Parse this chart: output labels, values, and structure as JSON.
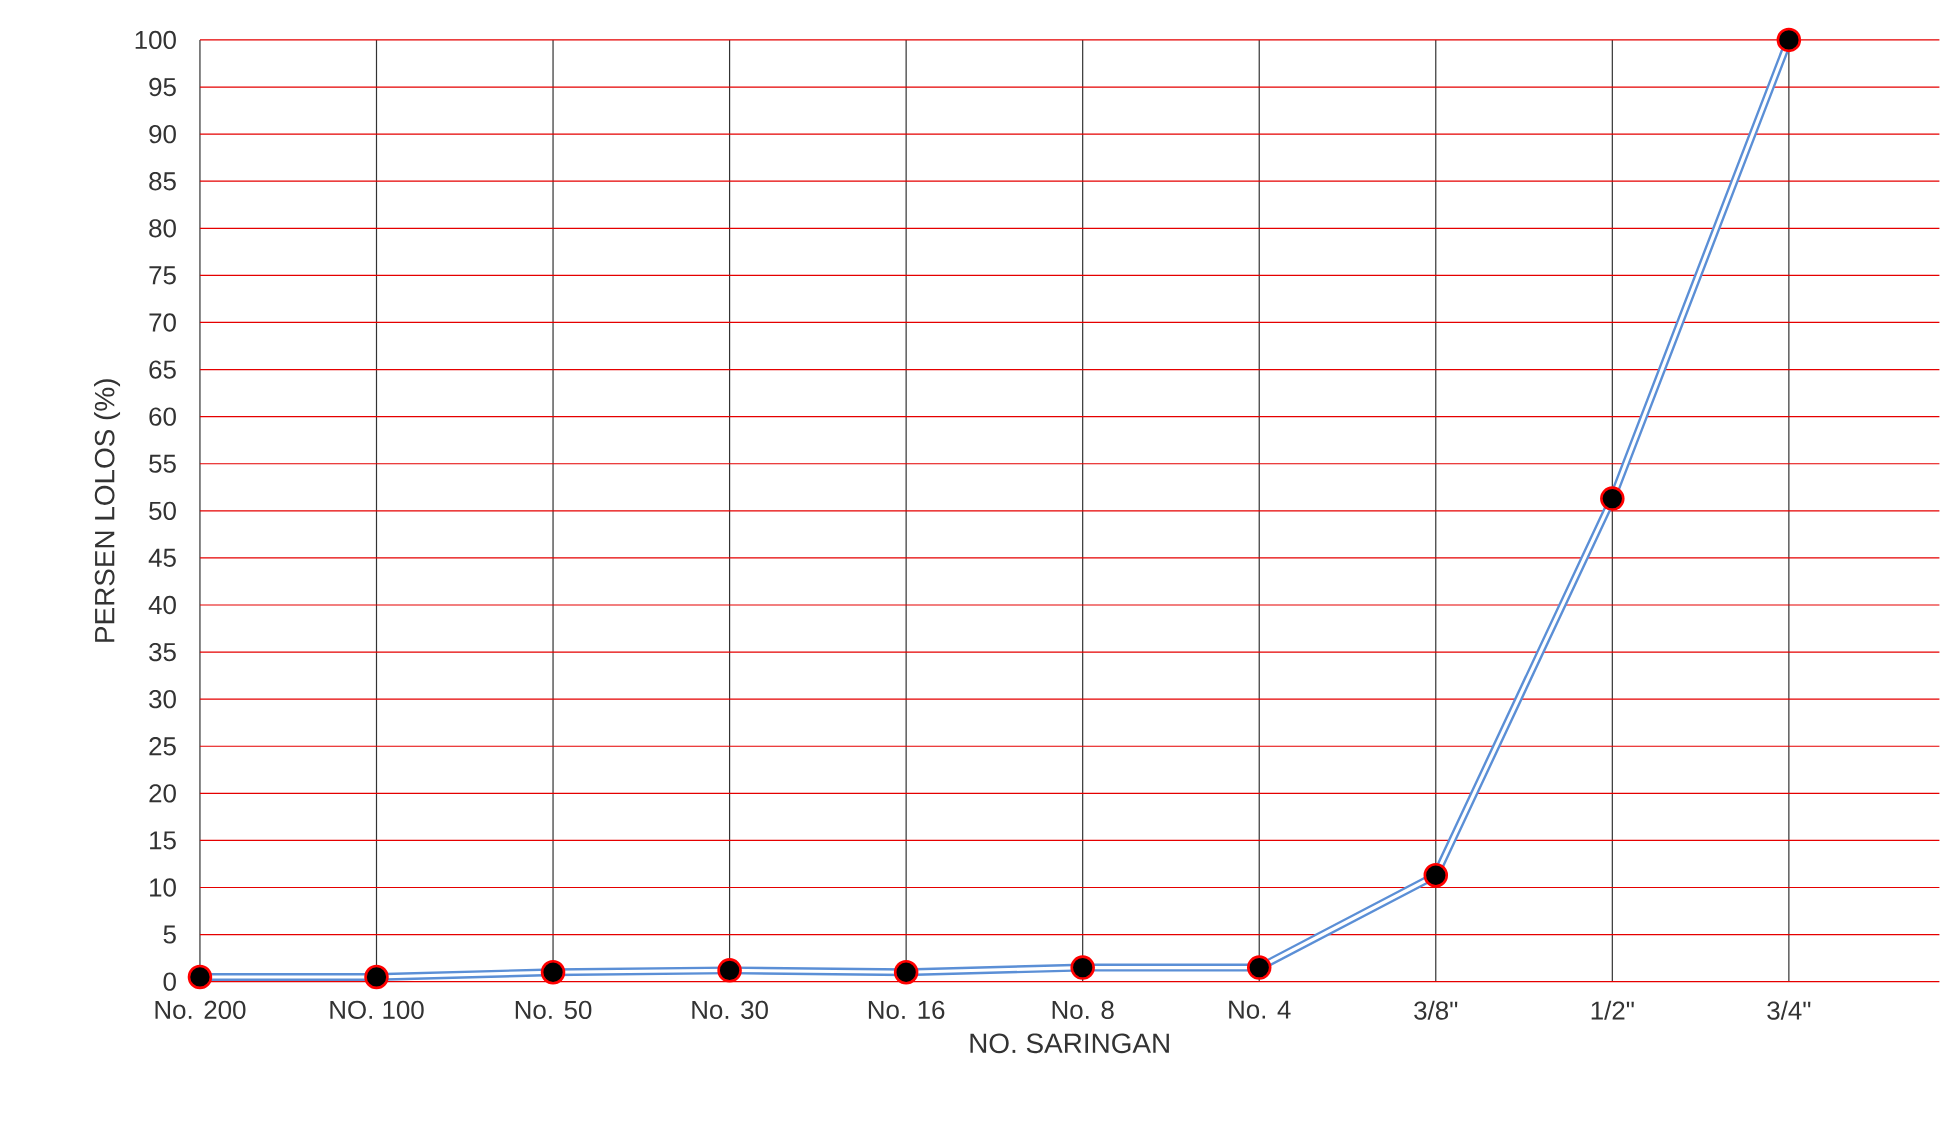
{
  "chart_data": {
    "type": "line",
    "xlabel": "NO. SARINGAN",
    "ylabel": "PERSEN LOLOS (%)",
    "categories": [
      "No. 200",
      "NO. 100",
      "No. 50",
      "No. 30",
      "No. 16",
      "No. 8",
      "No. 4",
      "3/8\"",
      "1/2\"",
      "3/4\""
    ],
    "series": [
      {
        "color": "#5b8fd6",
        "values": [
          0.5,
          0.5,
          1,
          1.2,
          1,
          1.5,
          1.5,
          11.3,
          51.3,
          100
        ]
      }
    ],
    "ylim": [
      0,
      100
    ],
    "yticks": [
      0,
      5,
      10,
      15,
      20,
      25,
      30,
      35,
      40,
      45,
      50,
      55,
      60,
      65,
      70,
      75,
      80,
      85,
      90,
      95,
      100
    ],
    "grid": true,
    "marker": "circle",
    "line_style": "solid"
  }
}
